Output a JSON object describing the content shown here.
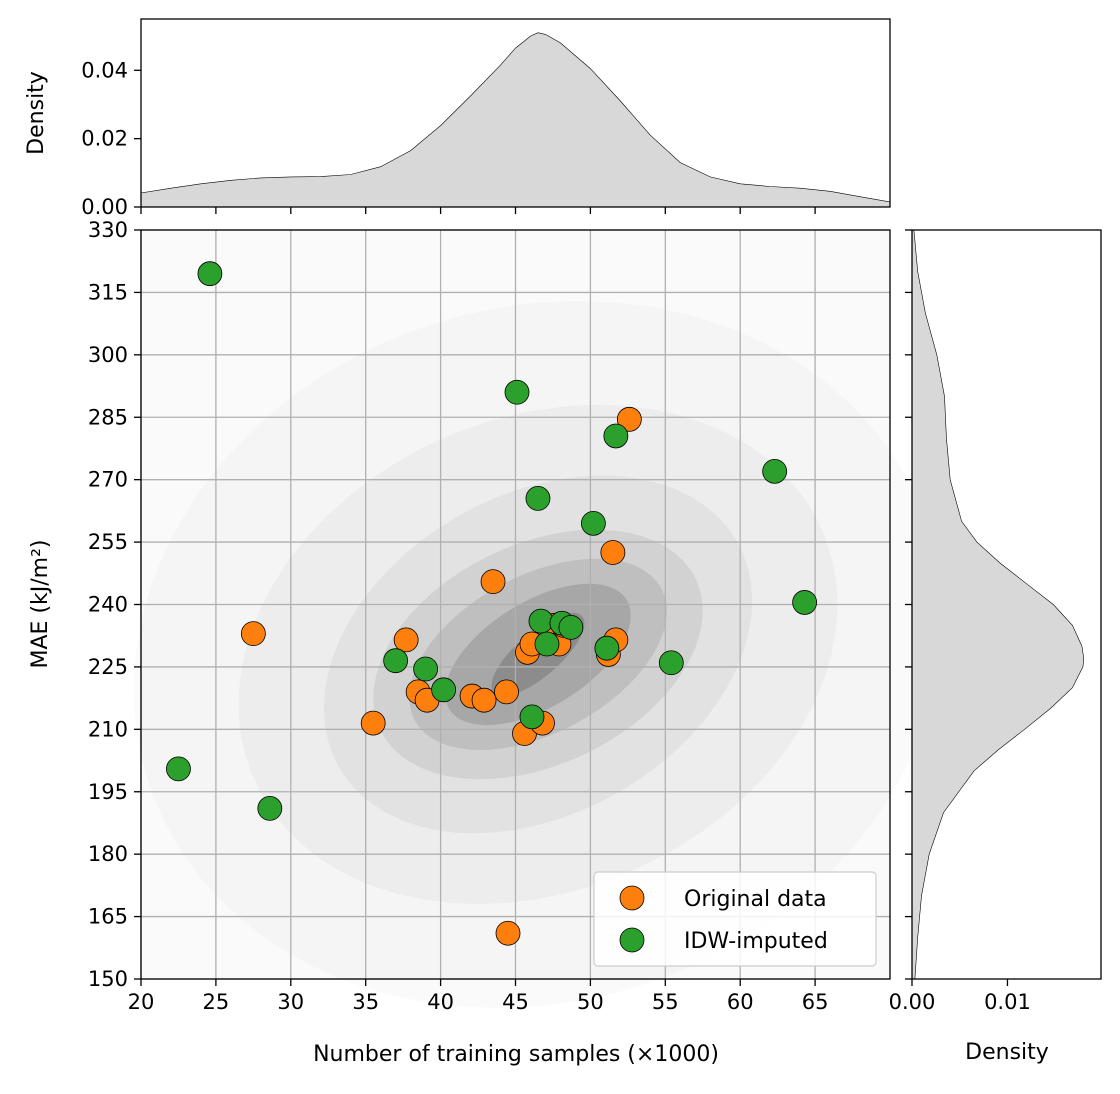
{
  "chart_data": {
    "type": "scatter",
    "subtype": "joint-plot-with-kde",
    "xlabel": "Number of training samples (×1000)",
    "ylabel": "MAE (kJ/m²)",
    "xlim": [
      20,
      70
    ],
    "ylim": [
      150,
      330
    ],
    "x_ticks": [
      "20",
      "25",
      "30",
      "35",
      "40",
      "45",
      "50",
      "55",
      "60",
      "65"
    ],
    "y_ticks": [
      "150",
      "165",
      "180",
      "195",
      "210",
      "225",
      "240",
      "255",
      "270",
      "285",
      "300",
      "315",
      "330"
    ],
    "grid": true,
    "legend_position": "lower-right",
    "series": [
      {
        "name": "Original data",
        "color": "#ff7f0e",
        "points": [
          [
            27.5,
            233
          ],
          [
            35.5,
            211.5
          ],
          [
            37.7,
            231.5
          ],
          [
            38.5,
            219
          ],
          [
            39.1,
            217
          ],
          [
            42.1,
            218
          ],
          [
            42.9,
            217
          ],
          [
            43.5,
            245.5
          ],
          [
            44.4,
            219
          ],
          [
            44.5,
            161
          ],
          [
            45.6,
            209
          ],
          [
            45.8,
            228.5
          ],
          [
            46.1,
            230.5
          ],
          [
            46.8,
            211.5
          ],
          [
            47.1,
            235
          ],
          [
            47.6,
            235
          ],
          [
            47.9,
            230.5
          ],
          [
            48.2,
            235
          ],
          [
            51.2,
            228
          ],
          [
            51.5,
            252.5
          ],
          [
            51.7,
            231.5
          ],
          [
            52.6,
            284.5
          ]
        ]
      },
      {
        "name": "IDW-imputed",
        "color": "#2ca02c",
        "points": [
          [
            22.5,
            200.5
          ],
          [
            24.6,
            319.5
          ],
          [
            28.6,
            191
          ],
          [
            37.0,
            226.5
          ],
          [
            39.0,
            224.5
          ],
          [
            40.2,
            219.5
          ],
          [
            45.1,
            291
          ],
          [
            46.1,
            213
          ],
          [
            46.5,
            265.5
          ],
          [
            46.7,
            236
          ],
          [
            47.1,
            230.5
          ],
          [
            48.1,
            235.5
          ],
          [
            48.7,
            234.5
          ],
          [
            50.2,
            259.5
          ],
          [
            51.1,
            229.5
          ],
          [
            51.7,
            280.5
          ],
          [
            55.4,
            226
          ],
          [
            62.3,
            272
          ],
          [
            64.3,
            240.5
          ]
        ]
      }
    ],
    "top_marginal": {
      "ylabel": "Density",
      "ylim": [
        0,
        0.055
      ],
      "y_ticks": [
        "0.00",
        "0.02",
        "0.04"
      ],
      "kde_x": [
        20,
        22,
        24,
        26,
        28,
        30,
        32,
        34,
        36,
        38,
        40,
        42,
        44,
        45,
        46,
        46.5,
        47,
        48,
        50,
        52,
        54,
        56,
        58,
        60,
        62,
        64,
        66,
        68,
        70
      ],
      "kde_density": [
        0.0041,
        0.0055,
        0.0068,
        0.0078,
        0.0085,
        0.0088,
        0.0089,
        0.0095,
        0.0118,
        0.0165,
        0.0238,
        0.0325,
        0.0415,
        0.0465,
        0.05,
        0.051,
        0.0505,
        0.048,
        0.0405,
        0.031,
        0.021,
        0.013,
        0.0088,
        0.0068,
        0.006,
        0.0055,
        0.0046,
        0.003,
        0.0015
      ]
    },
    "right_marginal": {
      "xlabel": "Density",
      "xlim": [
        0,
        0.0198
      ],
      "x_ticks": [
        "0.00",
        "0.01"
      ],
      "kde_y": [
        150,
        160,
        170,
        180,
        190,
        200,
        205,
        210,
        215,
        220,
        225,
        227,
        230,
        235,
        240,
        245,
        250,
        255,
        260,
        270,
        280,
        290,
        300,
        310,
        320,
        330
      ],
      "kde_density": [
        0.0003,
        0.0006,
        0.001,
        0.0018,
        0.0033,
        0.0065,
        0.009,
        0.0118,
        0.0145,
        0.0168,
        0.0179,
        0.018,
        0.0178,
        0.0168,
        0.0148,
        0.012,
        0.0092,
        0.0068,
        0.0052,
        0.004,
        0.0036,
        0.0034,
        0.0026,
        0.0014,
        0.0006,
        0.0002
      ]
    },
    "kde_2d": {
      "center": [
        46.5,
        228
      ],
      "fill_color": "#000000",
      "levels": [
        {
          "sx": 3.1,
          "sy": 10,
          "rho": 0.75,
          "opacity": 0.16
        },
        {
          "sx": 6.2,
          "sy": 17,
          "rho": 0.55,
          "opacity": 0.12
        },
        {
          "sx": 8.6,
          "sy": 23,
          "rho": 0.45,
          "opacity": 0.09
        },
        {
          "sx": 11.0,
          "sy": 30,
          "rho": 0.35,
          "opacity": 0.07
        },
        {
          "sx": 14.3,
          "sy": 43,
          "rho": 0.3,
          "opacity": 0.045
        },
        {
          "sx": 20.0,
          "sy": 60,
          "rho": 0.2,
          "opacity": 0.03
        },
        {
          "sx": 27.0,
          "sy": 85,
          "rho": 0.1,
          "opacity": 0.02
        }
      ]
    }
  }
}
